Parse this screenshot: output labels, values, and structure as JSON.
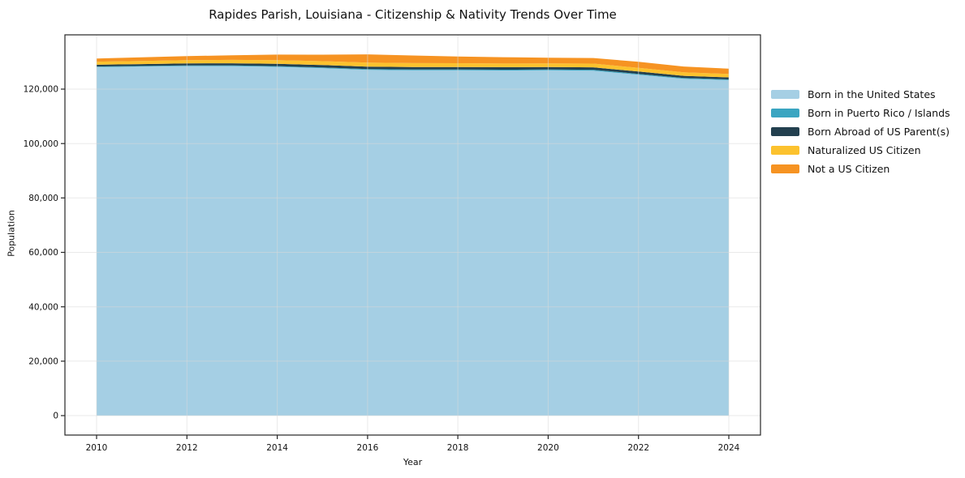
{
  "figure": {
    "background": "#ffffff",
    "spine_color": "#262626",
    "grid_color": "#d9d9d9",
    "text_color": "#111111"
  },
  "chart_data": {
    "type": "area",
    "stacked": true,
    "title": "Rapides Parish, Louisiana - Citizenship & Nativity Trends Over Time",
    "xlabel": "Year",
    "ylabel": "Population",
    "x": [
      2010,
      2011,
      2012,
      2013,
      2014,
      2015,
      2016,
      2017,
      2018,
      2019,
      2020,
      2021,
      2022,
      2023,
      2024
    ],
    "series": [
      {
        "name": "Born in the United States",
        "color": "#a5cfe4",
        "values": [
          128100,
          128300,
          128500,
          128450,
          128200,
          127700,
          127100,
          126900,
          126900,
          126850,
          126900,
          126800,
          125300,
          123800,
          123300
        ]
      },
      {
        "name": "Born in Puerto Rico / Islands",
        "color": "#3aa5c1",
        "values": [
          200,
          210,
          220,
          240,
          250,
          260,
          280,
          300,
          300,
          310,
          320,
          320,
          300,
          280,
          260
        ]
      },
      {
        "name": "Born Abroad of US Parent(s)",
        "color": "#23404f",
        "values": [
          650,
          700,
          750,
          800,
          850,
          880,
          900,
          910,
          900,
          900,
          900,
          880,
          850,
          800,
          770
        ]
      },
      {
        "name": "Naturalized US Citizen",
        "color": "#fcc22e",
        "values": [
          1100,
          1150,
          1200,
          1250,
          1320,
          1420,
          1500,
          1460,
          1420,
          1360,
          1310,
          1380,
          1340,
          1280,
          1230
        ]
      },
      {
        "name": "Not a US Citizen",
        "color": "#f69322",
        "values": [
          1200,
          1300,
          1450,
          1700,
          2050,
          2400,
          3000,
          2800,
          2450,
          2300,
          2100,
          2050,
          2250,
          2150,
          1950
        ]
      }
    ],
    "x_ticks": [
      2010,
      2012,
      2014,
      2016,
      2018,
      2020,
      2022,
      2024
    ],
    "x_tick_labels": [
      "2010",
      "2012",
      "2014",
      "2016",
      "2018",
      "2020",
      "2022",
      "2024"
    ],
    "y_ticks": [
      0,
      20000,
      40000,
      60000,
      80000,
      100000,
      120000
    ],
    "y_tick_labels": [
      "0",
      "20,000",
      "40,000",
      "60,000",
      "80,000",
      "100,000",
      "120,000"
    ],
    "xlim": [
      2009.3,
      2024.7
    ],
    "ylim": [
      -7150,
      139950
    ],
    "grid": true,
    "legend_position": "right"
  }
}
